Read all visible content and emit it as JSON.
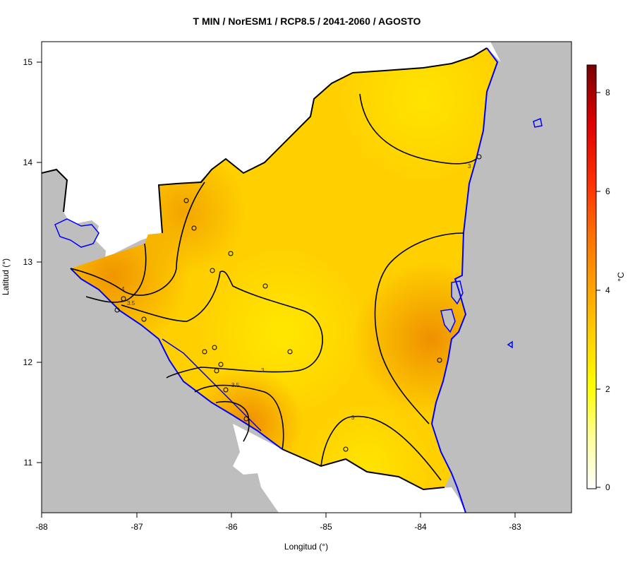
{
  "title": "T MIN / NorESM1 / RCP8.5 / 2041-2060 / AGOSTO",
  "x_axis": {
    "label": "Longitud (°)",
    "ticks": [
      "-88",
      "-87",
      "-86",
      "-85",
      "-84",
      "-83"
    ]
  },
  "y_axis": {
    "label": "Latitud (°)",
    "ticks": [
      "15",
      "14",
      "13",
      "12",
      "11"
    ]
  },
  "colorbar": {
    "unit": "°C",
    "ticks": [
      "8",
      "6",
      "4",
      "2",
      "0"
    ]
  },
  "contour_labels": {
    "c4": "4",
    "c35": "3.5",
    "c3": "3"
  },
  "colors": {
    "background": "#bebebe",
    "coast": "#0000ff",
    "border": "#000000",
    "low": "#ffeb00",
    "high": "#f29a00"
  }
}
